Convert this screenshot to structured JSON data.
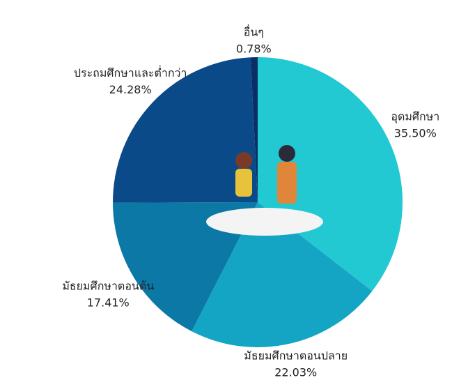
{
  "chart_data": {
    "type": "pie",
    "categories": [
      "อุดมศึกษา",
      "มัธยมศึกษาตอนปลาย",
      "มัธยมศึกษาตอนต้น",
      "ประถมศึกษาและต่ำกว่า",
      "อื่นๆ"
    ],
    "values": [
      35.5,
      22.03,
      17.41,
      24.28,
      0.78
    ],
    "value_labels": [
      "35.50%",
      "22.03%",
      "17.41%",
      "24.28%",
      "0.78%"
    ],
    "colors": [
      "#22c8d2",
      "#13a5c3",
      "#0b78a6",
      "#0b4a88",
      "#0a2e66"
    ]
  }
}
